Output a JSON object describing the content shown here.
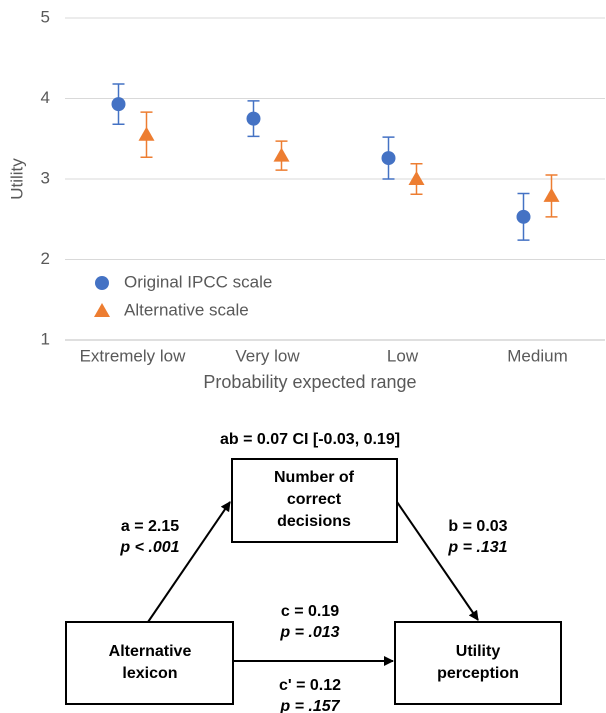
{
  "chart_data": {
    "type": "errorbar-scatter",
    "xlabel": "Probability expected range",
    "ylabel": "Utility",
    "categories": [
      "Extremely low",
      "Very low",
      "Low",
      "Medium"
    ],
    "series": [
      {
        "name": "Original IPCC scale",
        "color": "#4472c4",
        "marker": "circle",
        "values": [
          3.93,
          3.75,
          3.26,
          2.53
        ],
        "errors": [
          0.25,
          0.22,
          0.26,
          0.29
        ]
      },
      {
        "name": "Alternative scale",
        "color": "#ed7d31",
        "marker": "triangle",
        "values": [
          3.55,
          3.29,
          3.0,
          2.79
        ],
        "errors": [
          0.28,
          0.18,
          0.19,
          0.26
        ]
      }
    ],
    "ylim": [
      1,
      5
    ],
    "yticks": [
      1,
      2,
      3,
      4,
      5
    ],
    "grid": true,
    "legend": "lower left"
  },
  "diagram": {
    "top_label": "ab = 0.07 CI [-0.03, 0.19]",
    "nodes": [
      {
        "lines": [
          "Number of",
          "correct",
          "decisions"
        ]
      },
      {
        "lines": [
          "Alternative",
          "lexicon"
        ]
      },
      {
        "lines": [
          "Utility",
          "perception"
        ]
      }
    ],
    "paths": [
      {
        "lines": [
          "a = 2.15",
          "p < .001"
        ]
      },
      {
        "lines": [
          "b = 0.03",
          "p = .131"
        ]
      },
      {
        "lines": [
          "c = 0.19",
          "p = .013"
        ]
      },
      {
        "lines": [
          "c' = 0.12",
          "p = .157"
        ]
      }
    ]
  }
}
